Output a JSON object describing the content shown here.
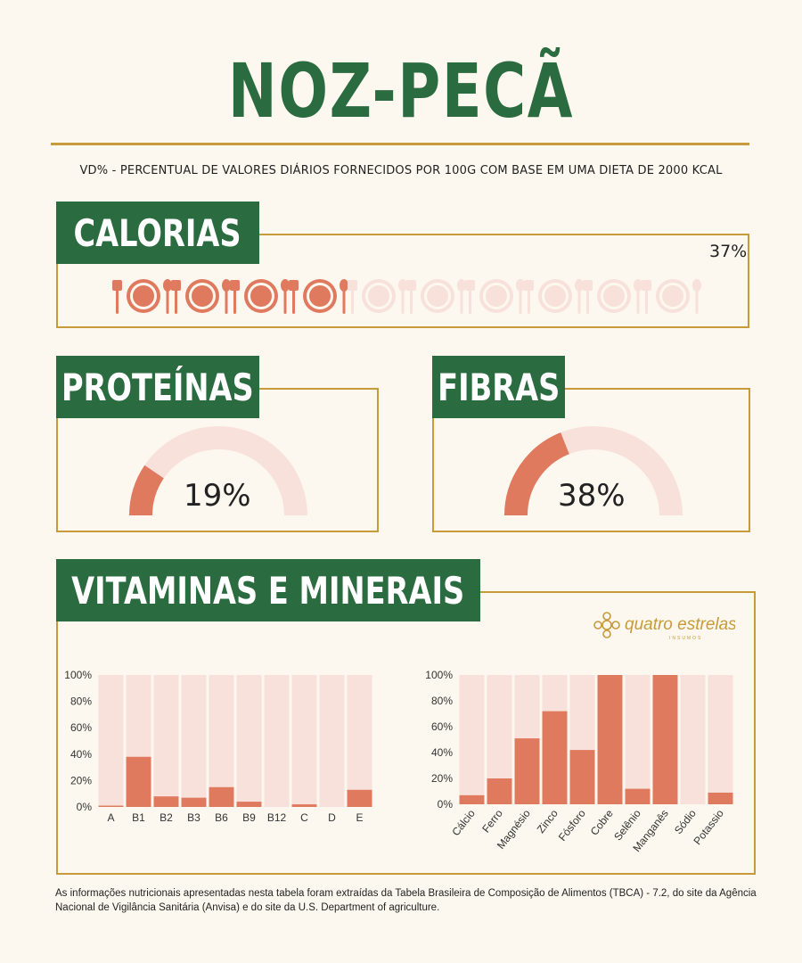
{
  "title": "NOZ-PECÃ",
  "subtitle": "VD% - PERCENTUAL DE VALORES DIÁRIOS FORNECIDOS POR 100G COM BASE EM UMA DIETA DE 2000 KCAL",
  "colors": {
    "green": "#2a6b3f",
    "gold": "#c79a3a",
    "coral": "#e07a5f",
    "pale": "#f7e1da",
    "background": "#fdf8ef"
  },
  "calorias": {
    "label": "CALORIAS",
    "value_text": "37%",
    "value": 37,
    "icon_name": "plate-cutlery-icon",
    "icon_count": 10,
    "icons_filled": 4
  },
  "proteinas": {
    "label": "PROTEÍNAS",
    "value_text": "19%",
    "value": 19
  },
  "fibras": {
    "label": "FIBRAS",
    "value_text": "38%",
    "value": 38
  },
  "vitaminas": {
    "label": "VITAMINAS E MINERAIS"
  },
  "brand": {
    "name": "quatro estrelas",
    "tagline": "INSUMOS"
  },
  "chart_data": [
    {
      "type": "bar",
      "categories": [
        "A",
        "B1",
        "B2",
        "B3",
        "B6",
        "B9",
        "B12",
        "C",
        "D",
        "E"
      ],
      "values": [
        1,
        38,
        8,
        7,
        15,
        4,
        0,
        2,
        0,
        13
      ],
      "ylim": [
        0,
        100
      ],
      "yticks": [
        "0%",
        "20%",
        "40%",
        "60%",
        "80%",
        "100%"
      ]
    },
    {
      "type": "bar",
      "categories": [
        "Cálcio",
        "Ferro",
        "Magnésio",
        "Zinco",
        "Fósforo",
        "Cobre",
        "Selênio",
        "Manganês",
        "Sódio",
        "Potassio"
      ],
      "values": [
        7,
        20,
        51,
        72,
        42,
        100,
        12,
        100,
        0,
        9
      ],
      "ylim": [
        0,
        100
      ],
      "yticks": [
        "0%",
        "20%",
        "40%",
        "60%",
        "80%",
        "100%"
      ]
    }
  ],
  "footnote": "As informações nutricionais apresentadas nesta tabela foram extraídas da Tabela Brasileira de Composição de Alimentos (TBCA) - 7.2, do site da Agência Nacional de Vigilância Sanitária (Anvisa) e do site da U.S. Department of agriculture."
}
